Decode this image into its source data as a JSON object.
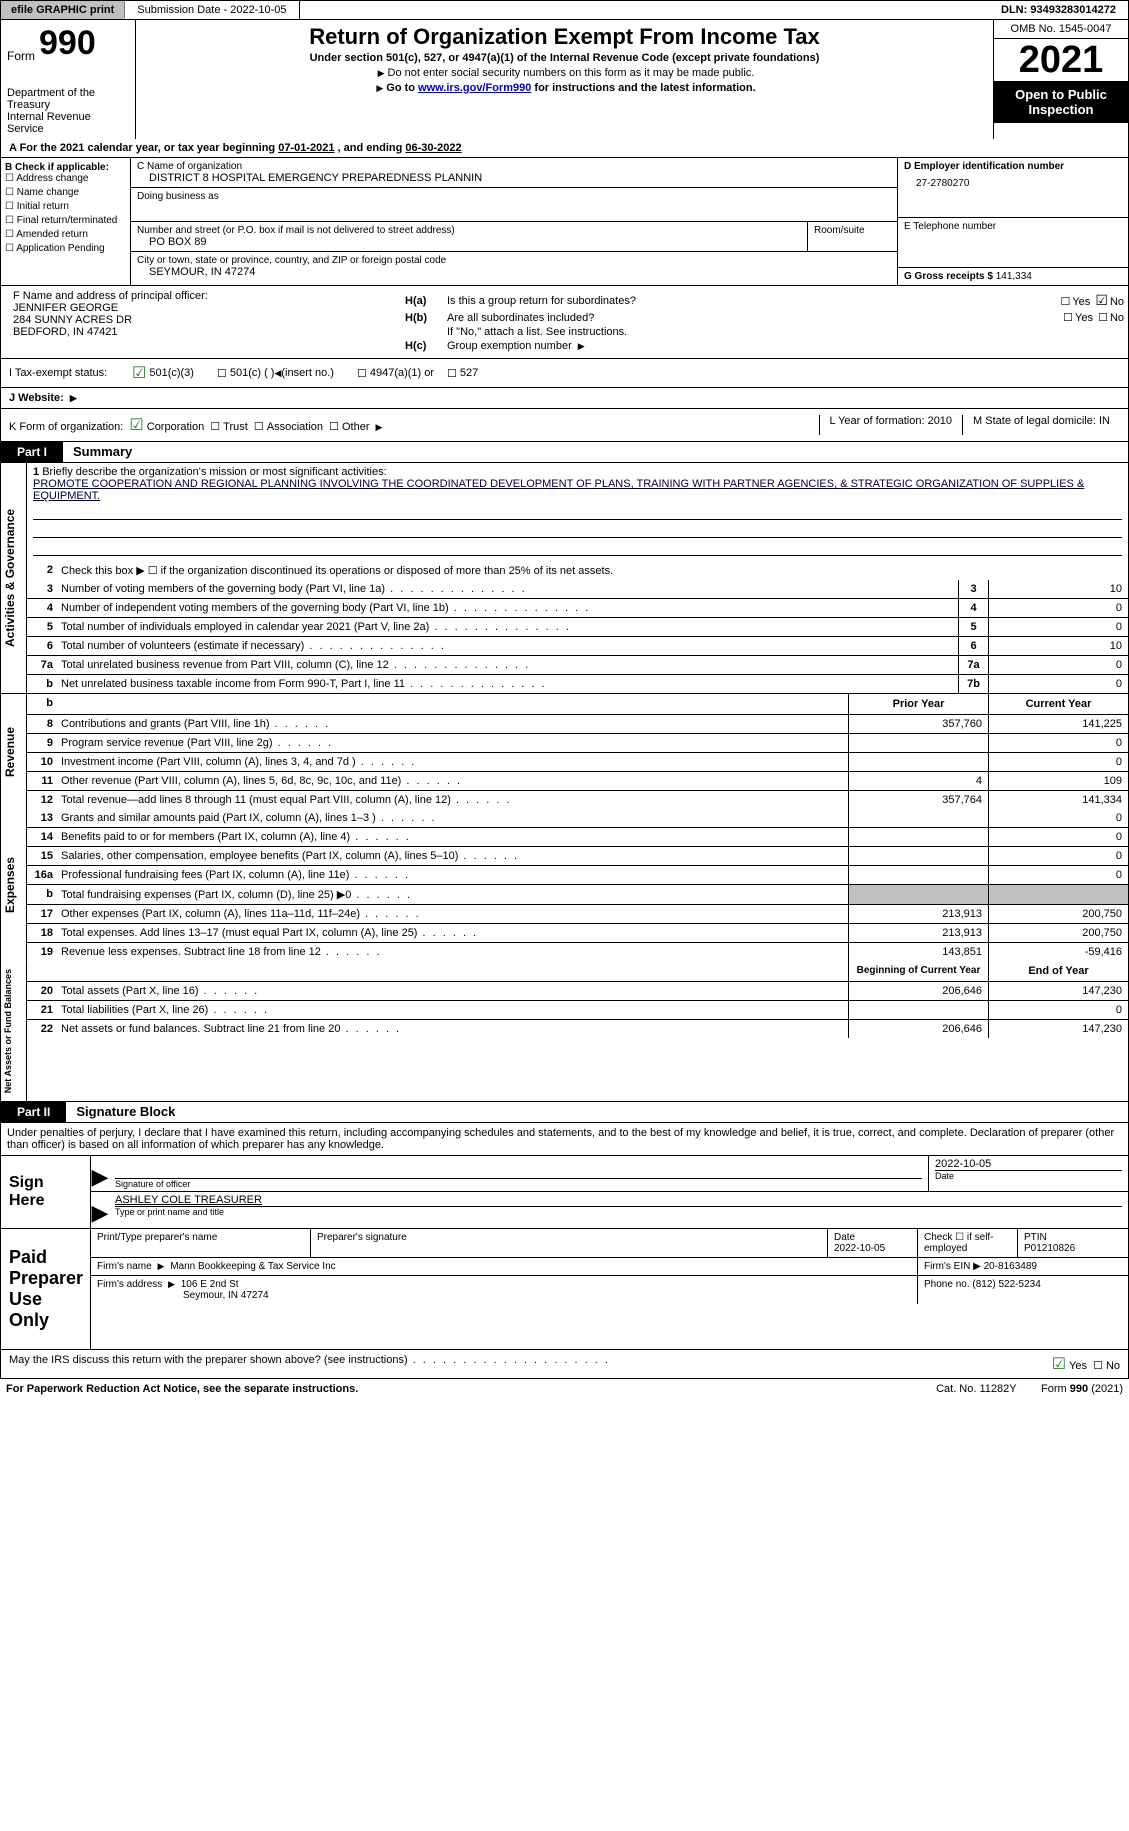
{
  "topbar": {
    "efile": "efile GRAPHIC print",
    "submission": "Submission Date - 2022-10-05",
    "dln": "DLN: 93493283014272"
  },
  "header": {
    "form_word": "Form",
    "form_number": "990",
    "dept": "Department of the Treasury",
    "irs": "Internal Revenue Service",
    "title": "Return of Organization Exempt From Income Tax",
    "sub": "Under section 501(c), 527, or 4947(a)(1) of the Internal Revenue Code (except private foundations)",
    "note1": "Do not enter social security numbers on this form as it may be made public.",
    "note2_a": "Go to ",
    "note2_link": "www.irs.gov/Form990",
    "note2_b": " for instructions and the latest information.",
    "omb": "OMB No. 1545-0047",
    "year": "2021",
    "open1": "Open to Public",
    "open2": "Inspection"
  },
  "period": {
    "a": "A For the 2021 calendar year, or tax year beginning ",
    "start": "07-01-2021",
    "mid": " , and ending ",
    "end": "06-30-2022"
  },
  "b": {
    "label": "B Check if applicable:",
    "opts": [
      "Address change",
      "Name change",
      "Initial return",
      "Final return/terminated",
      "Amended return",
      "Application Pending"
    ]
  },
  "c": {
    "name_lbl": "C Name of organization",
    "name": "DISTRICT 8 HOSPITAL EMERGENCY PREPAREDNESS PLANNIN",
    "dba_lbl": "Doing business as",
    "addr_lbl": "Number and street (or P.O. box if mail is not delivered to street address)",
    "room_lbl": "Room/suite",
    "addr": "PO BOX 89",
    "city_lbl": "City or town, state or province, country, and ZIP or foreign postal code",
    "city": "SEYMOUR, IN  47274"
  },
  "d": {
    "lbl": "D Employer identification number",
    "val": "27-2780270"
  },
  "e": {
    "lbl": "E Telephone number",
    "val": ""
  },
  "g": {
    "lbl": "G Gross receipts $",
    "val": "141,334"
  },
  "f": {
    "lbl": "F Name and address of principal officer:",
    "name": "JENNIFER GEORGE",
    "addr1": "284 SUNNY ACRES DR",
    "addr2": "BEDFORD, IN  47421"
  },
  "h": {
    "a_lbl": "H(a)",
    "a_txt": "Is this a group return for subordinates?",
    "a_yes": "Yes",
    "a_no": "No",
    "b_lbl": "H(b)",
    "b_txt": "Are all subordinates included?",
    "b_yes": "Yes",
    "b_no": "No",
    "b_note": "If \"No,\" attach a list. See instructions.",
    "c_lbl": "H(c)",
    "c_txt": "Group exemption number"
  },
  "i": {
    "lbl": "I   Tax-exempt status:",
    "o1": "501(c)(3)",
    "o2": "501(c) (  )",
    "o2b": "(insert no.)",
    "o3": "4947(a)(1) or",
    "o4": "527"
  },
  "j": {
    "lbl": "J   Website:"
  },
  "k": {
    "lbl": "K Form of organization:",
    "o1": "Corporation",
    "o2": "Trust",
    "o3": "Association",
    "o4": "Other",
    "l": "L Year of formation: 2010",
    "m": "M State of legal domicile: IN"
  },
  "part1": {
    "hdr": "Part I",
    "title": "Summary"
  },
  "activities_lbl": "Activities & Governance",
  "mission": {
    "num": "1",
    "lbl": "Briefly describe the organization's mission or most significant activities:",
    "txt": "PROMOTE COOPERATION AND REGIONAL PLANNING INVOLVING THE COORDINATED DEVELOPMENT OF PLANS, TRAINING WITH PARTNER AGENCIES, & STRATEGIC ORGANIZATION OF SUPPLIES & EQUIPMENT."
  },
  "line2": {
    "num": "2",
    "txt": "Check this box ▶ ☐ if the organization discontinued its operations or disposed of more than 25% of its net assets."
  },
  "lines_ag": [
    {
      "num": "3",
      "desc": "Number of voting members of the governing body (Part VI, line 1a)",
      "box": "3",
      "val": "10"
    },
    {
      "num": "4",
      "desc": "Number of independent voting members of the governing body (Part VI, line 1b)",
      "box": "4",
      "val": "0"
    },
    {
      "num": "5",
      "desc": "Total number of individuals employed in calendar year 2021 (Part V, line 2a)",
      "box": "5",
      "val": "0"
    },
    {
      "num": "6",
      "desc": "Total number of volunteers (estimate if necessary)",
      "box": "6",
      "val": "10"
    },
    {
      "num": "7a",
      "desc": "Total unrelated business revenue from Part VIII, column (C), line 12",
      "box": "7a",
      "val": "0"
    },
    {
      "num": "b",
      "desc": "Net unrelated business taxable income from Form 990-T, Part I, line 11",
      "box": "7b",
      "val": "0"
    }
  ],
  "py_hdr": "Prior Year",
  "cy_hdr": "Current Year",
  "revenue_lbl": "Revenue",
  "lines_rev": [
    {
      "num": "8",
      "desc": "Contributions and grants (Part VIII, line 1h)",
      "py": "357,760",
      "cy": "141,225"
    },
    {
      "num": "9",
      "desc": "Program service revenue (Part VIII, line 2g)",
      "py": "",
      "cy": "0"
    },
    {
      "num": "10",
      "desc": "Investment income (Part VIII, column (A), lines 3, 4, and 7d )",
      "py": "",
      "cy": "0"
    },
    {
      "num": "11",
      "desc": "Other revenue (Part VIII, column (A), lines 5, 6d, 8c, 9c, 10c, and 11e)",
      "py": "4",
      "cy": "109"
    },
    {
      "num": "12",
      "desc": "Total revenue—add lines 8 through 11 (must equal Part VIII, column (A), line 12)",
      "py": "357,764",
      "cy": "141,334"
    }
  ],
  "expenses_lbl": "Expenses",
  "lines_exp": [
    {
      "num": "13",
      "desc": "Grants and similar amounts paid (Part IX, column (A), lines 1–3 )",
      "py": "",
      "cy": "0"
    },
    {
      "num": "14",
      "desc": "Benefits paid to or for members (Part IX, column (A), line 4)",
      "py": "",
      "cy": "0"
    },
    {
      "num": "15",
      "desc": "Salaries, other compensation, employee benefits (Part IX, column (A), lines 5–10)",
      "py": "",
      "cy": "0"
    },
    {
      "num": "16a",
      "desc": "Professional fundraising fees (Part IX, column (A), line 11e)",
      "py": "",
      "cy": "0"
    },
    {
      "num": "b",
      "desc": "Total fundraising expenses (Part IX, column (D), line 25) ▶0",
      "py": "gray",
      "cy": "gray"
    },
    {
      "num": "17",
      "desc": "Other expenses (Part IX, column (A), lines 11a–11d, 11f–24e)",
      "py": "213,913",
      "cy": "200,750"
    },
    {
      "num": "18",
      "desc": "Total expenses. Add lines 13–17 (must equal Part IX, column (A), line 25)",
      "py": "213,913",
      "cy": "200,750"
    },
    {
      "num": "19",
      "desc": "Revenue less expenses. Subtract line 18 from line 12",
      "py": "143,851",
      "cy": "-59,416"
    }
  ],
  "na_lbl": "Net Assets or Fund Balances",
  "bcy_hdr": "Beginning of Current Year",
  "eoy_hdr": "End of Year",
  "lines_na": [
    {
      "num": "20",
      "desc": "Total assets (Part X, line 16)",
      "py": "206,646",
      "cy": "147,230"
    },
    {
      "num": "21",
      "desc": "Total liabilities (Part X, line 26)",
      "py": "",
      "cy": "0"
    },
    {
      "num": "22",
      "desc": "Net assets or fund balances. Subtract line 21 from line 20",
      "py": "206,646",
      "cy": "147,230"
    }
  ],
  "part2": {
    "hdr": "Part II",
    "title": "Signature Block"
  },
  "sig": {
    "intro": "Under penalties of perjury, I declare that I have examined this return, including accompanying schedules and statements, and to the best of my knowledge and belief, it is true, correct, and complete. Declaration of preparer (other than officer) is based on all information of which preparer has any knowledge.",
    "here": "Sign Here",
    "sig_lbl": "Signature of officer",
    "date_lbl": "Date",
    "date": "2022-10-05",
    "name": "ASHLEY COLE  TREASURER",
    "name_lbl": "Type or print name and title"
  },
  "prep": {
    "hdr": "Paid Preparer Use Only",
    "r1": {
      "c1": "Print/Type preparer's name",
      "c2": "Preparer's signature",
      "c3l": "Date",
      "c3": "2022-10-05",
      "c4": "Check ☐ if self-employed",
      "c5l": "PTIN",
      "c5": "P01210826"
    },
    "r2": {
      "lbl": "Firm's name",
      "val": "Mann Bookkeeping & Tax Service Inc",
      "r": "Firm's EIN ▶ 20-8163489"
    },
    "r3": {
      "lbl": "Firm's address",
      "val1": "106 E 2nd St",
      "val2": "Seymour, IN  47274",
      "r": "Phone no. (812) 522-5234"
    }
  },
  "footer": {
    "q": "May the IRS discuss this return with the preparer shown above? (see instructions)",
    "yes": "Yes",
    "no": "No",
    "pra": "For Paperwork Reduction Act Notice, see the separate instructions.",
    "cat": "Cat. No. 11282Y",
    "form": "Form 990 (2021)"
  }
}
